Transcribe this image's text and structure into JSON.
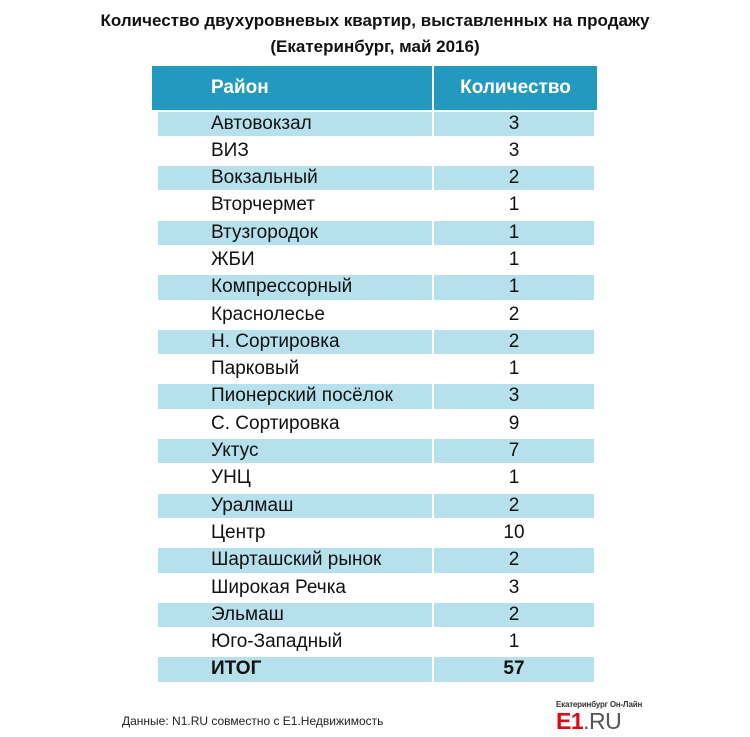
{
  "title_line1": "Количество двухуровневых квартир, выставленных на продажу",
  "title_line2": "(Екатеринбург, май 2016)",
  "chart_data": {
    "type": "table",
    "columns": [
      "Район",
      "Количество"
    ],
    "rows": [
      {
        "district": "Автовокзал",
        "count": "3"
      },
      {
        "district": "ВИЗ",
        "count": "3"
      },
      {
        "district": "Вокзальный",
        "count": "2"
      },
      {
        "district": "Вторчермет",
        "count": "1"
      },
      {
        "district": "Втузгородок",
        "count": "1"
      },
      {
        "district": "ЖБИ",
        "count": "1"
      },
      {
        "district": "Компрессорный",
        "count": "1"
      },
      {
        "district": "Краснолесье",
        "count": "2"
      },
      {
        "district": "Н. Сортировка",
        "count": "2"
      },
      {
        "district": "Парковый",
        "count": "1"
      },
      {
        "district": "Пионерский посёлок",
        "count": "3"
      },
      {
        "district": "С. Сортировка",
        "count": "9"
      },
      {
        "district": "Уктус",
        "count": "7"
      },
      {
        "district": "УНЦ",
        "count": "1"
      },
      {
        "district": "Уралмаш",
        "count": "2"
      },
      {
        "district": "Центр",
        "count": "10"
      },
      {
        "district": "Шарташский рынок",
        "count": "2"
      },
      {
        "district": "Широкая Речка",
        "count": "3"
      },
      {
        "district": "Эльмаш",
        "count": "2"
      },
      {
        "district": "Юго-Западный",
        "count": "1"
      }
    ],
    "total": {
      "district": "ИТОГ",
      "count": "57"
    }
  },
  "source": "Данные: N1.RU совместно с E1.Недвижимость",
  "logo": {
    "tagline": "Екатеринбург Он-Лайн",
    "main": "E1",
    "suffix": ".RU"
  },
  "colors": {
    "header_bg": "#2499bf",
    "shaded_row": "#b6e0ec",
    "logo_red": "#e30613"
  }
}
